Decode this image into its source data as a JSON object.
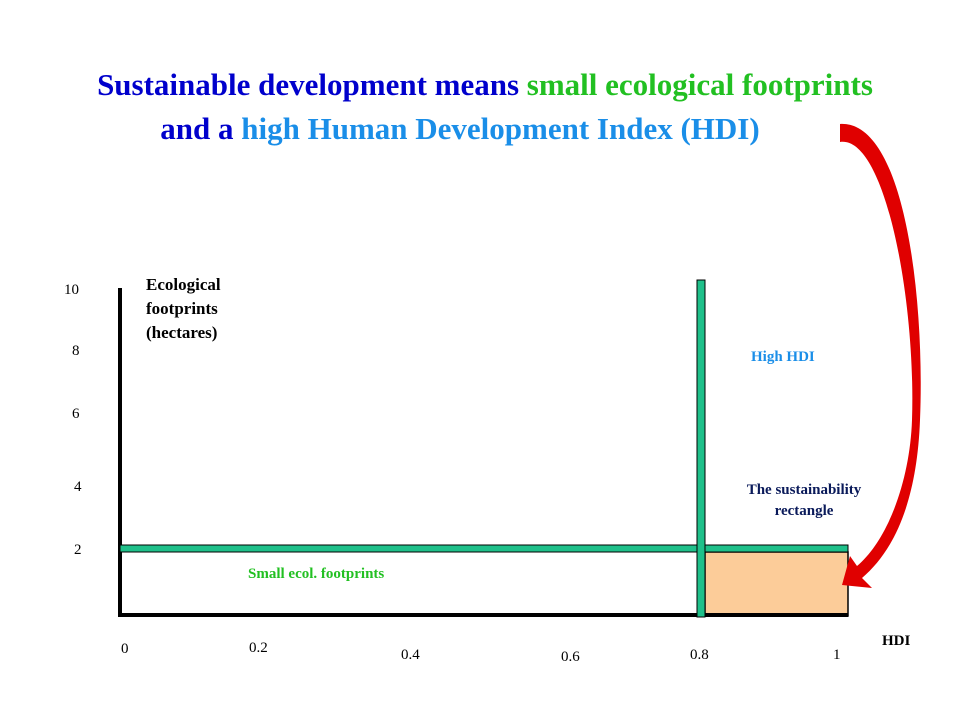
{
  "title": {
    "line1_part1": "Sustainable development means ",
    "line1_part2": "small ecological footprints",
    "line2_part1": "and a ",
    "line2_part2": "high Human Development Index (HDI)"
  },
  "colors": {
    "navy": "#0000cc",
    "green": "#22c022",
    "blue": "#1a8ee8",
    "bar": "#1fc08a",
    "rect": "#fccc99",
    "arrow": "#e00000"
  },
  "chart_data": {
    "type": "diagram",
    "ylabel": "Ecological footprints (hectares)",
    "ylabel_lines": [
      "Ecological",
      "footprints",
      "(hectares)"
    ],
    "xlabel": "HDI",
    "y_ticks": [
      "10",
      "8",
      "6",
      "4",
      "2"
    ],
    "x_ticks": [
      "0",
      "0.2",
      "0.4",
      "0.6",
      "0.8",
      "1"
    ],
    "xlim": [
      0,
      1
    ],
    "ylim": [
      0,
      10
    ],
    "hdi_threshold": 0.8,
    "footprint_threshold": 2,
    "annotations": {
      "high_hdi": "High HDI",
      "rect_line1": "The sustainability",
      "rect_line2": "rectangle",
      "small_footprints": "Small ecol. footprints"
    }
  }
}
